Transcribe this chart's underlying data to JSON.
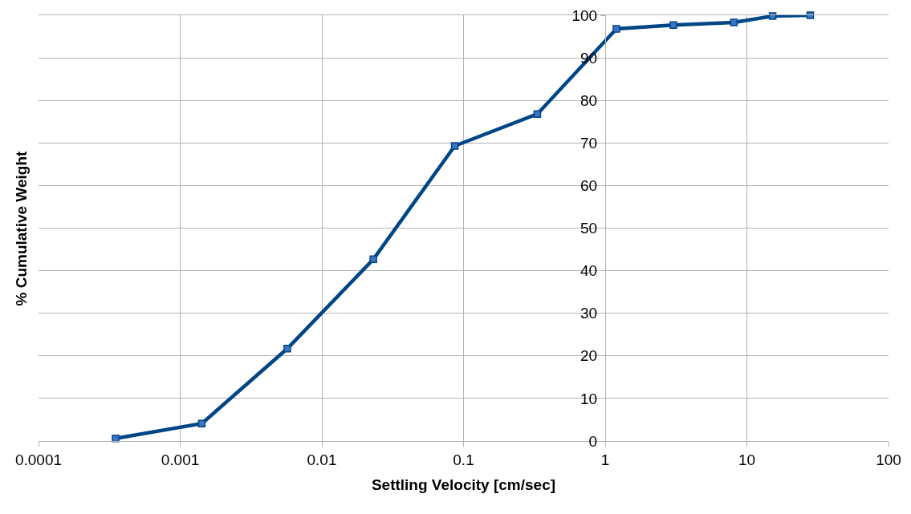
{
  "chart_data": {
    "type": "line",
    "xlabel": "Settling Velocity [cm/sec]",
    "ylabel": "% Cumulative Weight",
    "x": [
      0.00035,
      0.00142,
      0.0057,
      0.0231,
      0.0867,
      0.332,
      1.2,
      3.03,
      8.1,
      15.2,
      28
    ],
    "series": [
      {
        "color": "#004586",
        "values": [
          0.6,
          4.1,
          21.7,
          42.7,
          69.3,
          76.8,
          96.8,
          97.7,
          98.3,
          99.8,
          100
        ]
      }
    ],
    "log": "x",
    "xlim": [
      0.0001,
      100
    ],
    "xticks": [
      0.0001,
      0.001,
      0.01,
      0.1,
      1,
      10,
      100
    ],
    "ylim": [
      0,
      100
    ],
    "yticks": [
      0,
      10,
      20,
      30,
      40,
      50,
      60,
      70,
      80,
      90,
      100
    ],
    "grid": true,
    "marker": "square",
    "line_style": "solid"
  }
}
